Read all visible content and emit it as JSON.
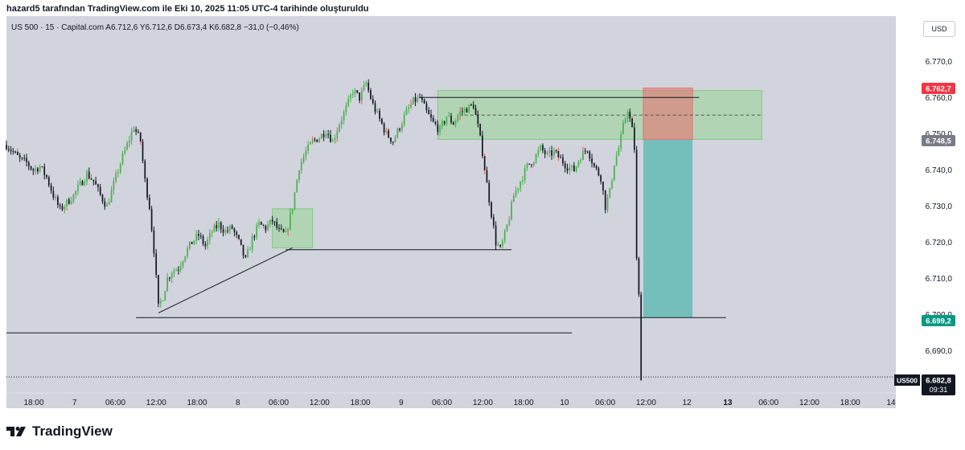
{
  "header": {
    "caption": "hazard5 tarafından TradingView.com ile Eki 10, 2025 11:05 UTC-4 tarihinde oluşturuldu",
    "symbol_line": "US 500 · 15 · Capital.com  A6.712,6  Y6.712,6  D6.673,4  K6.682,8  −31,0 (−0,46%)",
    "currency_button": "USD"
  },
  "price_labels": {
    "red": "6.762,7",
    "gray": "6.748,5",
    "green": "6.699,2",
    "current": "6.682,8",
    "countdown": "09:31",
    "ticker": "US500"
  },
  "footer": {
    "brand": "TradingView"
  },
  "colors": {
    "background": "#d1d4dc",
    "up_candle": "#4caf50",
    "down_candle": "#131722",
    "wick_red": "#ef5350",
    "label_red": "#f23645",
    "label_gray": "#787b86",
    "label_green": "#089981",
    "target_zone": "#4db6ac",
    "stop_zone": "#e57373",
    "demand_zone": "#a5d6a7"
  },
  "chart_data": {
    "type": "candlestick",
    "interval": "15",
    "y_ticks": [
      6690,
      6700,
      6710,
      6720,
      6730,
      6740,
      6750,
      6760,
      6770
    ],
    "y_tick_labels": [
      "6.690,0",
      "6.700,0",
      "6.710,0",
      "6.720,0",
      "6.730,0",
      "6.740,0",
      "6.750,0",
      "6.760,0",
      "6.770,0"
    ],
    "x_tick_labels": [
      "18:00",
      "7",
      "06:00",
      "12:00",
      "18:00",
      "8",
      "06:00",
      "12:00",
      "18:00",
      "9",
      "06:00",
      "12:00",
      "18:00",
      "10",
      "06:00",
      "12:00",
      "12",
      "13",
      "06:00",
      "12:00",
      "18:00",
      "14"
    ],
    "price_path": [
      [
        0,
        6747
      ],
      [
        3,
        6745
      ],
      [
        6,
        6743
      ],
      [
        9,
        6742
      ],
      [
        12,
        6740
      ],
      [
        15,
        6741
      ],
      [
        18,
        6738
      ],
      [
        21,
        6733
      ],
      [
        24,
        6729
      ],
      [
        27,
        6731
      ],
      [
        30,
        6733
      ],
      [
        33,
        6736
      ],
      [
        36,
        6739
      ],
      [
        39,
        6737
      ],
      [
        42,
        6733
      ],
      [
        45,
        6730
      ],
      [
        48,
        6736
      ],
      [
        51,
        6742
      ],
      [
        54,
        6747
      ],
      [
        57,
        6752
      ],
      [
        60,
        6748
      ],
      [
        62,
        6737
      ],
      [
        64,
        6730
      ],
      [
        66,
        6718
      ],
      [
        68,
        6702
      ],
      [
        70,
        6705
      ],
      [
        72,
        6710
      ],
      [
        74,
        6712
      ],
      [
        77,
        6713
      ],
      [
        80,
        6717
      ],
      [
        83,
        6720
      ],
      [
        86,
        6722
      ],
      [
        89,
        6719
      ],
      [
        92,
        6723
      ],
      [
        95,
        6725
      ],
      [
        98,
        6723
      ],
      [
        101,
        6724
      ],
      [
        104,
        6720
      ],
      [
        107,
        6715
      ],
      [
        110,
        6721
      ],
      [
        113,
        6725
      ],
      [
        116,
        6724
      ],
      [
        119,
        6726
      ],
      [
        122,
        6723
      ],
      [
        125,
        6722
      ],
      [
        128,
        6730
      ],
      [
        131,
        6741
      ],
      [
        134,
        6745
      ],
      [
        137,
        6748
      ],
      [
        140,
        6749
      ],
      [
        143,
        6751
      ],
      [
        146,
        6748
      ],
      [
        149,
        6753
      ],
      [
        152,
        6757
      ],
      [
        155,
        6762
      ],
      [
        158,
        6760
      ],
      [
        161,
        6764
      ],
      [
        164,
        6758
      ],
      [
        167,
        6754
      ],
      [
        170,
        6750
      ],
      [
        173,
        6748
      ],
      [
        176,
        6752
      ],
      [
        179,
        6756
      ],
      [
        182,
        6759
      ],
      [
        185,
        6760
      ],
      [
        188,
        6756
      ],
      [
        191,
        6753
      ],
      [
        194,
        6751
      ],
      [
        197,
        6755
      ],
      [
        200,
        6753
      ],
      [
        203,
        6756
      ],
      [
        206,
        6757
      ],
      [
        209,
        6758
      ],
      [
        211,
        6752
      ],
      [
        213,
        6745
      ],
      [
        215,
        6736
      ],
      [
        217,
        6728
      ],
      [
        219,
        6720
      ],
      [
        221,
        6718
      ],
      [
        223,
        6722
      ],
      [
        225,
        6727
      ],
      [
        227,
        6733
      ],
      [
        230,
        6737
      ],
      [
        233,
        6741
      ],
      [
        236,
        6743
      ],
      [
        239,
        6746
      ],
      [
        242,
        6744
      ],
      [
        245,
        6745
      ],
      [
        248,
        6743
      ],
      [
        251,
        6741
      ],
      [
        254,
        6740
      ],
      [
        257,
        6744
      ],
      [
        260,
        6746
      ],
      [
        263,
        6741
      ],
      [
        266,
        6738
      ],
      [
        268,
        6730
      ],
      [
        270,
        6734
      ],
      [
        272,
        6742
      ],
      [
        274,
        6746
      ],
      [
        276,
        6752
      ],
      [
        278,
        6757
      ],
      [
        280,
        6751
      ],
      [
        281,
        6746
      ],
      [
        282,
        6715
      ],
      [
        283,
        6705
      ],
      [
        284,
        6683
      ]
    ],
    "horizontal_lines": [
      6760.1,
      6718.0,
      6699.2,
      6695.0
    ],
    "trendline": [
      [
        68,
        6700.5
      ],
      [
        128,
        6718.5
      ]
    ],
    "zones": {
      "supply": {
        "from": 193,
        "to": 338,
        "low": 6748.5,
        "high": 6762.0
      },
      "demand": {
        "from": 119,
        "to": 137,
        "low": 6718.5,
        "high": 6729.3
      },
      "stop": {
        "from": 285,
        "to": 307,
        "low": 6748.5,
        "high": 6762.7
      },
      "target": {
        "from": 285,
        "to": 307,
        "low": 6699.2,
        "high": 6748.5
      },
      "entry": 6755.2
    },
    "last_price": 6682.8,
    "x_range": [
      0,
      398
    ],
    "ylim": [
      6678.6,
      6782.6
    ]
  }
}
